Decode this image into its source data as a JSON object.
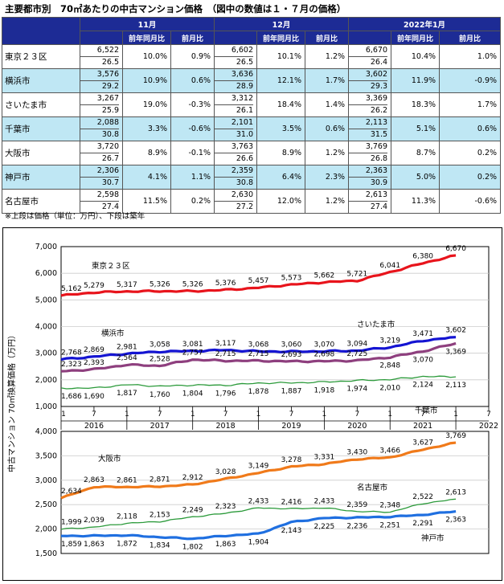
{
  "title": "主要都市別　70㎡あたりの中古マンション価格　（図中の数値は１・７月の価格）",
  "table": {
    "months": [
      "11月",
      "12月",
      "2022年1月"
    ],
    "subheaders": [
      "前年同月比",
      "前月比"
    ],
    "rows": [
      {
        "region": "東京２３区",
        "cells": [
          [
            "6,522",
            "26.5",
            "10.0%",
            "0.9%"
          ],
          [
            "6,602",
            "26.5",
            "10.1%",
            "1.2%"
          ],
          [
            "6,670",
            "26.4",
            "10.4%",
            "1.0%"
          ]
        ]
      },
      {
        "region": "横浜市",
        "cells": [
          [
            "3,576",
            "29.2",
            "10.9%",
            "0.6%"
          ],
          [
            "3,636",
            "28.9",
            "12.1%",
            "1.7%"
          ],
          [
            "3,602",
            "29.3",
            "11.9%",
            "-0.9%"
          ]
        ]
      },
      {
        "region": "さいたま市",
        "cells": [
          [
            "3,267",
            "25.9",
            "19.0%",
            "-0.3%"
          ],
          [
            "3,312",
            "26.1",
            "18.4%",
            "1.4%"
          ],
          [
            "3,369",
            "26.2",
            "18.3%",
            "1.7%"
          ]
        ]
      },
      {
        "region": "千葉市",
        "cells": [
          [
            "2,088",
            "30.8",
            "3.3%",
            "-0.6%"
          ],
          [
            "2,101",
            "31.0",
            "3.5%",
            "0.6%"
          ],
          [
            "2,113",
            "31.5",
            "5.1%",
            "0.6%"
          ]
        ]
      },
      {
        "region": "大阪市",
        "cells": [
          [
            "3,720",
            "26.7",
            "8.9%",
            "-0.1%"
          ],
          [
            "3,763",
            "26.6",
            "8.9%",
            "1.2%"
          ],
          [
            "3,769",
            "26.8",
            "8.7%",
            "0.2%"
          ]
        ]
      },
      {
        "region": "神戸市",
        "cells": [
          [
            "2,306",
            "30.7",
            "4.1%",
            "1.1%"
          ],
          [
            "2,359",
            "30.8",
            "6.4%",
            "2.3%"
          ],
          [
            "2,363",
            "30.9",
            "5.0%",
            "0.2%"
          ]
        ]
      },
      {
        "region": "名古屋市",
        "cells": [
          [
            "2,598",
            "27.4",
            "11.5%",
            "0.2%"
          ],
          [
            "2,630",
            "27.2",
            "12.0%",
            "1.2%"
          ],
          [
            "2,613",
            "27.4",
            "11.3%",
            "-0.6%"
          ]
        ]
      }
    ]
  },
  "note": "※上段は価格（単位：万円）、下段は築年",
  "chart_data": {
    "type": "line",
    "ylabel": "中古マンション 70㎡換算価格（万円）",
    "x_ticks": [
      "1",
      "7",
      "1",
      "7",
      "1",
      "7",
      "1",
      "7",
      "1",
      "7",
      "1",
      "7",
      "1",
      "7"
    ],
    "years": [
      "2016",
      "2017",
      "2018",
      "2019",
      "2020",
      "2021",
      "2022"
    ],
    "panels": [
      {
        "ylim": [
          1000,
          7000
        ],
        "yticks": [
          "1,000",
          "2,000",
          "3,000",
          "4,000",
          "5,000",
          "6,000",
          "7,000"
        ],
        "series": [
          {
            "name": "東京２３区",
            "color": "#e8141c",
            "points": [
              [
                0,
                5162
              ],
              [
                6,
                5279
              ],
              [
                12,
                5317
              ],
              [
                18,
                5326
              ],
              [
                24,
                5326
              ],
              [
                30,
                5376
              ],
              [
                36,
                5457
              ],
              [
                42,
                5573
              ],
              [
                48,
                5662
              ],
              [
                54,
                5721
              ],
              [
                60,
                6041
              ],
              [
                66,
                6380
              ],
              [
                72,
                6670
              ]
            ],
            "labels": [
              "5,162",
              "5,279",
              "5,317",
              "5,326",
              "5,326",
              "5,376",
              "5,457",
              "5,573",
              "5,662",
              "5,721",
              "6,041",
              "6,380",
              "6,670"
            ]
          },
          {
            "name": "横浜市",
            "color": "#1414d2",
            "points": [
              [
                0,
                2768
              ],
              [
                6,
                2869
              ],
              [
                12,
                2981
              ],
              [
                18,
                3058
              ],
              [
                24,
                3081
              ],
              [
                30,
                3117
              ],
              [
                36,
                3068
              ],
              [
                42,
                3060
              ],
              [
                48,
                3070
              ],
              [
                54,
                3094
              ],
              [
                60,
                3219
              ],
              [
                66,
                3471
              ],
              [
                72,
                3602
              ]
            ],
            "labels": [
              "2,768",
              "2,869",
              "2,981",
              "3,058",
              "3,081",
              "3,117",
              "3,068",
              "3,060",
              "3,070",
              "3,094",
              "3,219",
              "3,471",
              "3,602"
            ]
          },
          {
            "name": "さいたま市",
            "color": "#8e3f7e",
            "points": [
              [
                0,
                2323
              ],
              [
                6,
                2393
              ],
              [
                12,
                2564
              ],
              [
                18,
                2528
              ],
              [
                24,
                2757
              ],
              [
                30,
                2715
              ],
              [
                36,
                2715
              ],
              [
                42,
                2693
              ],
              [
                48,
                2698
              ],
              [
                54,
                2725
              ],
              [
                60,
                2848
              ],
              [
                66,
                3070
              ],
              [
                72,
                3369
              ]
            ],
            "labels": [
              "2,323",
              "2,393",
              "2,564",
              "2,528",
              "2,757",
              "2,715",
              "2,715",
              "2,693",
              "2,698",
              "2,725",
              "2,848",
              "3,070",
              "3,369"
            ]
          },
          {
            "name": "千葉市",
            "color": "#2b9a3a",
            "points": [
              [
                0,
                1686
              ],
              [
                6,
                1690
              ],
              [
                12,
                1817
              ],
              [
                18,
                1760
              ],
              [
                24,
                1804
              ],
              [
                30,
                1796
              ],
              [
                36,
                1878
              ],
              [
                42,
                1887
              ],
              [
                48,
                1918
              ],
              [
                54,
                1974
              ],
              [
                60,
                2010
              ],
              [
                66,
                2124
              ],
              [
                72,
                2113
              ]
            ],
            "labels": [
              "1,686",
              "1,690",
              "1,817",
              "1,760",
              "1,804",
              "1,796",
              "1,878",
              "1,887",
              "1,918",
              "1,974",
              "2,010",
              "2,124",
              "2,113"
            ]
          }
        ]
      },
      {
        "ylim": [
          1500,
          4000
        ],
        "yticks": [
          "1,500",
          "2,000",
          "2,500",
          "3,000",
          "3,500",
          "4,000"
        ],
        "series": [
          {
            "name": "大阪市",
            "color": "#f07a1a",
            "points": [
              [
                0,
                2634
              ],
              [
                6,
                2863
              ],
              [
                12,
                2861
              ],
              [
                18,
                2871
              ],
              [
                24,
                2912
              ],
              [
                30,
                3028
              ],
              [
                36,
                3149
              ],
              [
                42,
                3278
              ],
              [
                48,
                3331
              ],
              [
                54,
                3430
              ],
              [
                60,
                3466
              ],
              [
                66,
                3627
              ],
              [
                72,
                3769
              ]
            ],
            "labels": [
              "2,634",
              "2,863",
              "2,861",
              "2,871",
              "2,912",
              "3,028",
              "3,149",
              "3,278",
              "3,331",
              "3,430",
              "3,466",
              "3,627",
              "3,769"
            ]
          },
          {
            "name": "名古屋市",
            "color": "#2b9a3a",
            "points": [
              [
                0,
                1999
              ],
              [
                6,
                2039
              ],
              [
                12,
                2118
              ],
              [
                18,
                2153
              ],
              [
                24,
                2249
              ],
              [
                30,
                2323
              ],
              [
                36,
                2433
              ],
              [
                42,
                2416
              ],
              [
                48,
                2433
              ],
              [
                54,
                2359
              ],
              [
                60,
                2348
              ],
              [
                66,
                2522
              ],
              [
                72,
                2613
              ]
            ],
            "labels": [
              "1,999",
              "2,039",
              "2,118",
              "2,153",
              "2,249",
              "2,323",
              "2,433",
              "2,416",
              "2,433",
              "2,359",
              "2,348",
              "2,522",
              "2,613"
            ]
          },
          {
            "name": "神戸市",
            "color": "#1f6fe0",
            "points": [
              [
                0,
                1859
              ],
              [
                6,
                1863
              ],
              [
                12,
                1872
              ],
              [
                18,
                1834
              ],
              [
                24,
                1802
              ],
              [
                30,
                1863
              ],
              [
                36,
                1904
              ],
              [
                42,
                2143
              ],
              [
                48,
                2225
              ],
              [
                54,
                2236
              ],
              [
                60,
                2251
              ],
              [
                66,
                2291
              ],
              [
                72,
                2363
              ]
            ],
            "labels": [
              "1,859",
              "1,863",
              "1,872",
              "1,834",
              "1,802",
              "1,863",
              "1,904",
              "2,143",
              "2,225",
              "2,236",
              "2,251",
              "2,291",
              "2,363"
            ]
          }
        ]
      }
    ]
  }
}
